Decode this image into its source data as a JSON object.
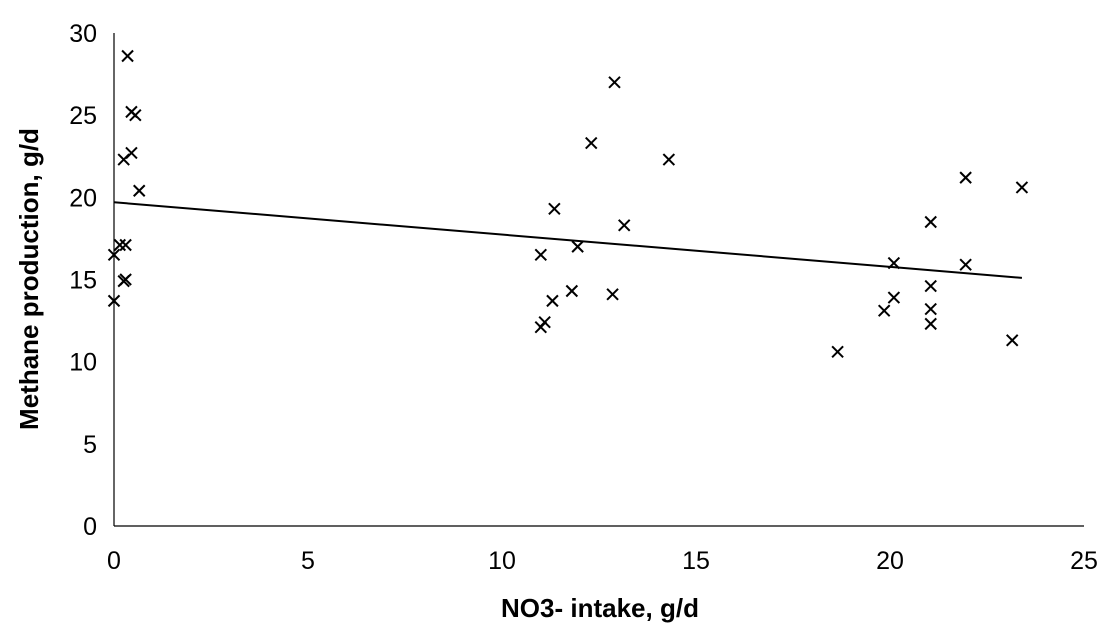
{
  "chart_data": {
    "type": "scatter",
    "title": "",
    "xlabel": "NO3- intake, g/d",
    "ylabel": "Methane production, g/d",
    "xlim": [
      0,
      25
    ],
    "ylim": [
      0,
      30
    ],
    "xticks": [
      "0",
      "5",
      "10",
      "15",
      "20",
      "25"
    ],
    "yticks": [
      "0",
      "5",
      "10",
      "15",
      "20",
      "25",
      "30"
    ],
    "grid": false,
    "legend": "none",
    "marker": "x",
    "color": "#000000",
    "series": [
      {
        "points": [
          [
            0.0,
            13.7
          ],
          [
            0.0,
            16.5
          ],
          [
            0.15,
            17.1
          ],
          [
            0.25,
            14.9
          ],
          [
            0.3,
            17.1
          ],
          [
            0.3,
            15.0
          ],
          [
            0.25,
            22.3
          ],
          [
            0.35,
            28.6
          ],
          [
            0.45,
            22.7
          ],
          [
            0.45,
            25.2
          ],
          [
            0.55,
            25.0
          ],
          [
            0.65,
            20.4
          ],
          [
            11.0,
            16.5
          ],
          [
            11.0,
            12.1
          ],
          [
            11.1,
            12.4
          ],
          [
            11.3,
            13.7
          ],
          [
            11.35,
            19.3
          ],
          [
            11.8,
            14.3
          ],
          [
            11.95,
            17.0
          ],
          [
            12.3,
            23.3
          ],
          [
            12.85,
            14.1
          ],
          [
            12.9,
            27.0
          ],
          [
            13.15,
            18.3
          ],
          [
            14.3,
            22.3
          ],
          [
            18.65,
            10.6
          ],
          [
            19.85,
            13.1
          ],
          [
            20.1,
            16.0
          ],
          [
            20.1,
            13.9
          ],
          [
            21.05,
            18.5
          ],
          [
            21.05,
            14.6
          ],
          [
            21.05,
            13.2
          ],
          [
            21.05,
            12.3
          ],
          [
            21.95,
            21.2
          ],
          [
            21.95,
            15.9
          ],
          [
            23.15,
            11.3
          ],
          [
            23.4,
            20.6
          ]
        ]
      }
    ],
    "trendline": {
      "x": [
        0,
        23.4
      ],
      "y": [
        19.7,
        15.1
      ]
    }
  }
}
